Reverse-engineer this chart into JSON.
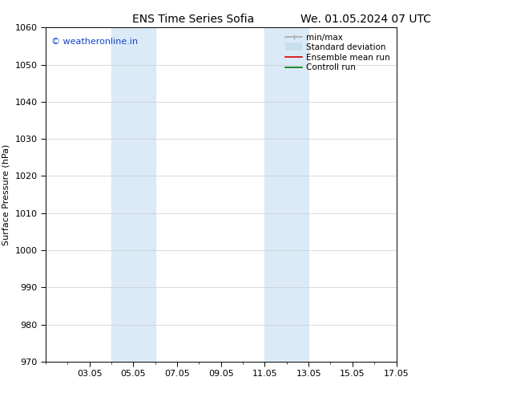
{
  "title_left": "ENS Time Series Sofia",
  "title_right": "We. 01.05.2024 07 UTC",
  "ylabel": "Surface Pressure (hPa)",
  "ylim": [
    970,
    1060
  ],
  "yticks": [
    970,
    980,
    990,
    1000,
    1010,
    1020,
    1030,
    1040,
    1050,
    1060
  ],
  "xlim": [
    1,
    17
  ],
  "xtick_labels": [
    "03.05",
    "05.05",
    "07.05",
    "09.05",
    "11.05",
    "13.05",
    "15.05",
    "17.05"
  ],
  "xtick_positions": [
    3,
    5,
    7,
    9,
    11,
    13,
    15,
    17
  ],
  "shaded_regions": [
    {
      "x_start": 4.0,
      "x_end": 6.0
    },
    {
      "x_start": 11.0,
      "x_end": 13.0
    }
  ],
  "shade_color": "#daeaf7",
  "watermark_text": "© weatheronline.in",
  "watermark_color": "#1144cc",
  "watermark_fontsize": 8,
  "legend_items": [
    {
      "label": "min/max",
      "color": "#aaaaaa",
      "lw": 1.2
    },
    {
      "label": "Standard deviation",
      "color": "#c8dff0",
      "lw": 7
    },
    {
      "label": "Ensemble mean run",
      "color": "#dd0000",
      "lw": 1.2
    },
    {
      "label": "Controll run",
      "color": "#007700",
      "lw": 1.2
    }
  ],
  "bg_color": "#ffffff",
  "title_fontsize": 10,
  "axis_label_fontsize": 8,
  "tick_fontsize": 8,
  "legend_fontsize": 7.5,
  "grid_color": "#cccccc",
  "grid_lw": 0.5
}
